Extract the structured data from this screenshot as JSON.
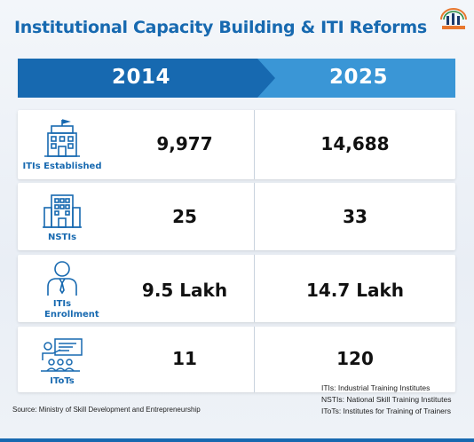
{
  "title": "Institutional Capacity Building & ITI Reforms",
  "header": {
    "year_left": "2014",
    "year_right": "2025"
  },
  "rows": [
    {
      "label": "ITIs Established",
      "icon": "building-icon",
      "value_2014": "9,977",
      "value_2025": "14,688"
    },
    {
      "label": "NSTIs",
      "icon": "office-building-icon",
      "value_2014": "25",
      "value_2025": "33"
    },
    {
      "label": "ITIs Enrollment",
      "icon": "person-icon",
      "value_2014": "9.5 Lakh",
      "value_2025": "14.7 Lakh"
    },
    {
      "label": "IToTs",
      "icon": "trainer-presentation-icon",
      "value_2014": "11",
      "value_2025": "120"
    }
  ],
  "source": "Source: Ministry of Skill Development and Entrepreneurship",
  "notes": [
    "ITIs: Industrial Training Institutes",
    "NSTIs: National Skill Training Institutes",
    "IToTs: Institutes for Training of Trainers"
  ],
  "colors": {
    "accent": "#1769b0",
    "header_dark": "#1769b0",
    "header_light": "#3a96d6"
  }
}
